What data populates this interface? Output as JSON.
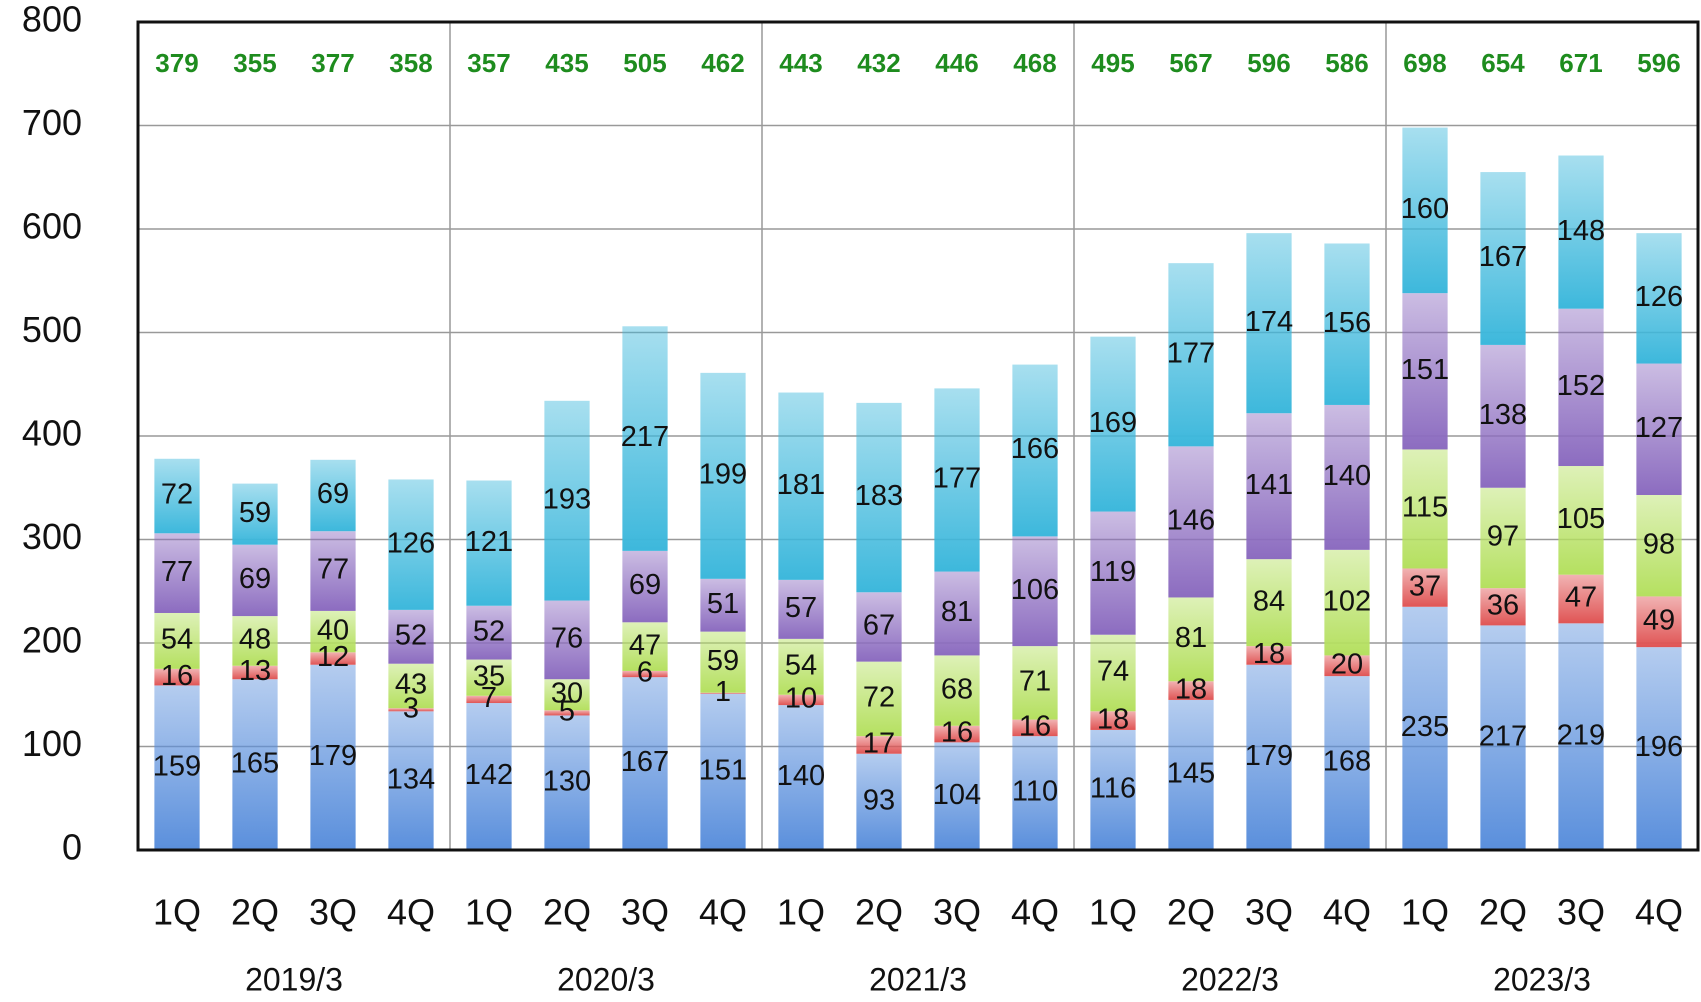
{
  "chart_data": {
    "type": "stacked_bar",
    "categories": [
      "1Q",
      "2Q",
      "3Q",
      "4Q",
      "1Q",
      "2Q",
      "3Q",
      "4Q",
      "1Q",
      "2Q",
      "3Q",
      "4Q",
      "1Q",
      "2Q",
      "3Q",
      "4Q",
      "1Q",
      "2Q",
      "3Q",
      "4Q"
    ],
    "groups": [
      "2019/3",
      "2020/3",
      "2021/3",
      "2022/3",
      "2023/3"
    ],
    "series": [
      {
        "color": "#5a8fdc",
        "values": [
          159,
          165,
          179,
          134,
          142,
          130,
          167,
          151,
          140,
          93,
          104,
          110,
          116,
          145,
          179,
          168,
          235,
          217,
          219,
          196
        ]
      },
      {
        "color": "#e05555",
        "values": [
          16,
          13,
          12,
          3,
          7,
          5,
          6,
          1,
          10,
          17,
          16,
          16,
          18,
          18,
          18,
          20,
          37,
          36,
          47,
          49
        ]
      },
      {
        "color": "#b5e060",
        "values": [
          54,
          48,
          40,
          43,
          35,
          30,
          47,
          59,
          54,
          72,
          68,
          71,
          74,
          81,
          84,
          102,
          115,
          97,
          105,
          98
        ]
      },
      {
        "color": "#8c6cc0",
        "values": [
          77,
          69,
          77,
          52,
          52,
          76,
          69,
          51,
          57,
          67,
          81,
          106,
          119,
          146,
          141,
          140,
          151,
          138,
          152,
          127
        ]
      },
      {
        "color": "#3db8dc",
        "values": [
          72,
          59,
          69,
          126,
          121,
          193,
          217,
          199,
          181,
          183,
          177,
          166,
          169,
          177,
          174,
          156,
          160,
          167,
          148,
          126
        ]
      }
    ],
    "totals": [
      379,
      355,
      377,
      358,
      357,
      435,
      505,
      462,
      443,
      432,
      446,
      468,
      495,
      567,
      596,
      586,
      698,
      654,
      671,
      596
    ],
    "totals_color": "#1e8c1e",
    "ylim": [
      0,
      800
    ],
    "yticks": [
      0,
      100,
      200,
      300,
      400,
      500,
      600,
      700,
      800
    ],
    "grid": true
  }
}
